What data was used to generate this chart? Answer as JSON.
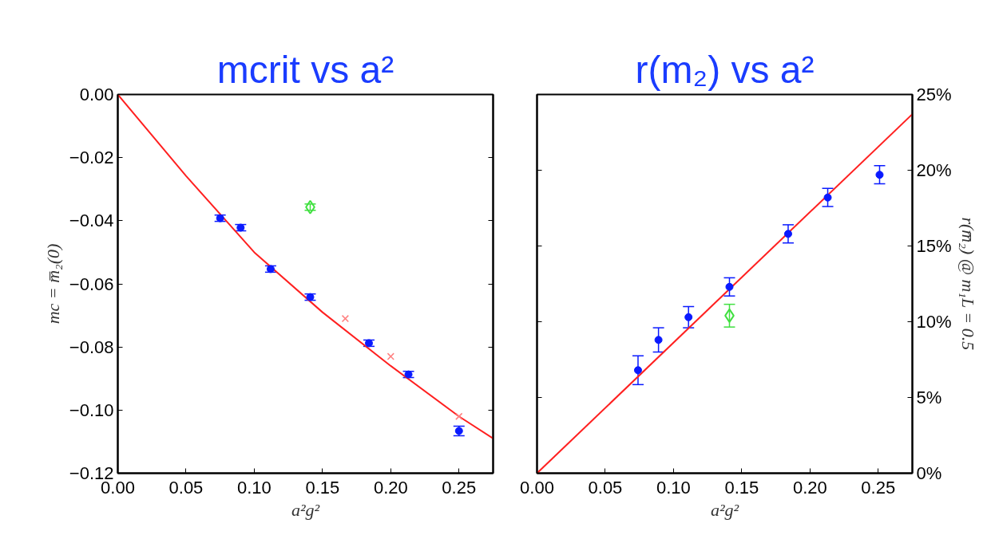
{
  "chart_data": [
    {
      "type": "scatter",
      "title": "mcrit vs a²",
      "xlabel": "a²g²",
      "ylabel": "mc = m̅₂(0)",
      "xlim": [
        0,
        0.275
      ],
      "ylim": [
        -0.12,
        0
      ],
      "xticks": [
        {
          "value": 0,
          "label": "0.00"
        },
        {
          "value": 0.05,
          "label": "0.05"
        },
        {
          "value": 0.1,
          "label": "0.10"
        },
        {
          "value": 0.15,
          "label": "0.15"
        },
        {
          "value": 0.2,
          "label": "0.20"
        },
        {
          "value": 0.25,
          "label": "0.25"
        }
      ],
      "yticks": [
        {
          "value": 0,
          "label": "0.00"
        },
        {
          "value": -0.02,
          "label": "−0.02"
        },
        {
          "value": -0.04,
          "label": "−0.04"
        },
        {
          "value": -0.06,
          "label": "−0.06"
        },
        {
          "value": -0.08,
          "label": "−0.08"
        },
        {
          "value": -0.1,
          "label": "−0.10"
        },
        {
          "value": -0.12,
          "label": "−0.12"
        }
      ],
      "series": [
        {
          "type": "line",
          "color": "#ff2020",
          "x": [
            0,
            0.05,
            0.1,
            0.15,
            0.2,
            0.25,
            0.275
          ],
          "values": [
            0,
            -0.0258,
            -0.05,
            -0.069,
            -0.086,
            -0.102,
            -0.109
          ],
          "marker": "none",
          "line_style": "solid"
        },
        {
          "type": "scatter",
          "color": "#ff8080",
          "x": [
            0.1667,
            0.2,
            0.25
          ],
          "values": [
            -0.071,
            -0.083,
            -0.102
          ],
          "marker": "cross"
        },
        {
          "type": "scatter",
          "color": "#0a1aff",
          "x": [
            0.075,
            0.09,
            0.112,
            0.141,
            0.184,
            0.213,
            0.25
          ],
          "values": [
            -0.0392,
            -0.0422,
            -0.0553,
            -0.0642,
            -0.0788,
            -0.0887,
            -0.1066
          ],
          "errors": [
            0.001,
            0.001,
            0.001,
            0.001,
            0.001,
            0.001,
            0.0015
          ],
          "marker": "circle"
        },
        {
          "type": "scatter",
          "color": "#40e040",
          "x": [
            0.141
          ],
          "values": [
            -0.0357
          ],
          "errors": [
            0.001
          ],
          "marker": "diamond"
        }
      ]
    },
    {
      "type": "scatter",
      "title": "r(m₂) vs a²",
      "xlabel": "a²g²",
      "y2label": "r(m̅₂) @ m₁L = 0.5",
      "xlim": [
        0,
        0.275
      ],
      "y2lim": [
        0,
        25
      ],
      "xticks": [
        {
          "value": 0,
          "label": "0.00"
        },
        {
          "value": 0.05,
          "label": "0.05"
        },
        {
          "value": 0.1,
          "label": "0.10"
        },
        {
          "value": 0.15,
          "label": "0.15"
        },
        {
          "value": 0.2,
          "label": "0.20"
        },
        {
          "value": 0.25,
          "label": "0.25"
        }
      ],
      "y2ticks": [
        {
          "value": 0,
          "label": "0%"
        },
        {
          "value": 5,
          "label": "5%"
        },
        {
          "value": 10,
          "label": "10%"
        },
        {
          "value": 15,
          "label": "15%"
        },
        {
          "value": 20,
          "label": "20%"
        },
        {
          "value": 25,
          "label": "25%"
        }
      ],
      "series": [
        {
          "type": "line",
          "axis": "y2",
          "color": "#ff2020",
          "x": [
            0,
            0.275
          ],
          "values": [
            0,
            23.7
          ],
          "marker": "none",
          "line_style": "solid"
        },
        {
          "type": "scatter",
          "axis": "y2",
          "color": "#0a1aff",
          "x": [
            0.074,
            0.089,
            0.111,
            0.141,
            0.184,
            0.213,
            0.251
          ],
          "values": [
            6.8,
            8.8,
            10.3,
            12.3,
            15.8,
            18.2,
            19.7
          ],
          "errors": [
            0.95,
            0.8,
            0.7,
            0.6,
            0.6,
            0.6,
            0.6
          ],
          "marker": "circle"
        },
        {
          "type": "scatter",
          "axis": "y2",
          "color": "#40e040",
          "x": [
            0.141
          ],
          "values": [
            10.4
          ],
          "errors": [
            0.75
          ],
          "marker": "diamond"
        }
      ]
    }
  ]
}
